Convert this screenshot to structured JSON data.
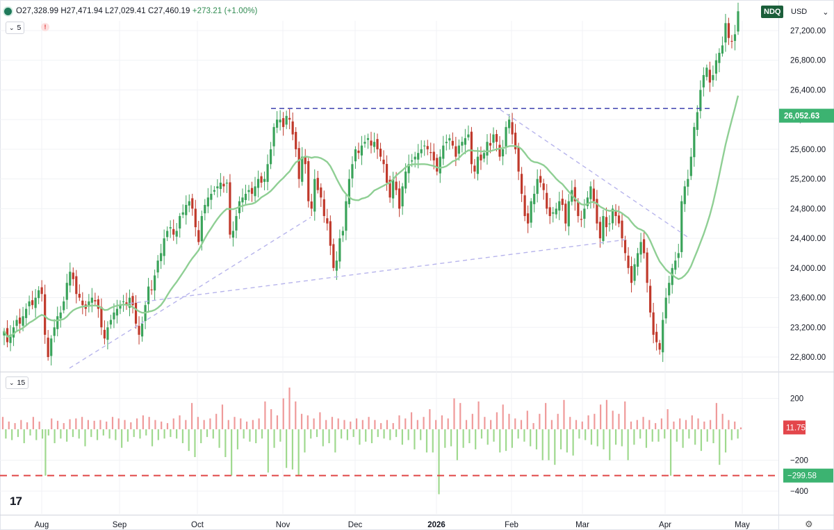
{
  "header": {
    "ohlc_text": "O27,328.99 H27,471.94 L27,029.41 C27,460.19",
    "change_text": "+273.21 (+1.00%)",
    "symbol": "NDQ",
    "currency": "USD",
    "currency_chevron": "⌄"
  },
  "studies": {
    "price_study_value": "5",
    "volume_study_value": "15",
    "warning_glyph": "!"
  },
  "logo_text": "17",
  "colors": {
    "up": "#3aa35a",
    "down": "#c0392b",
    "ma": "#8fcf94",
    "resistance": "#4c4fb5",
    "trendline": "#b7b4ec",
    "osc_up": "#ef9a9a",
    "osc_down": "#9fd98e",
    "osc_ref": "#e04646",
    "label_green": "#3cb371",
    "label_red": "#e3464b"
  },
  "chart_data": [
    {
      "type": "candlestick",
      "symbol": "NDQ",
      "currency": "USD",
      "last_ohlc": {
        "open": 27328.99,
        "high": 27471.94,
        "low": 27029.41,
        "close": 27460.19
      },
      "change": 273.21,
      "change_pct": 1.0,
      "x_tick_labels": [
        "Aug",
        "Sep",
        "Oct",
        "Nov",
        "Dec",
        "2026",
        "Feb",
        "Mar",
        "Apr",
        "May"
      ],
      "y_tick_labels": [
        "27,200.00",
        "26,800.00",
        "26,400.00",
        "26,000.00",
        "25,600.00",
        "25,200.00",
        "24,800.00",
        "24,400.00",
        "24,000.00",
        "23,600.00",
        "23,200.00",
        "22,800.00"
      ],
      "ylim": [
        22600,
        27600
      ],
      "grid": true,
      "price_label": {
        "value": 26052.63,
        "text": "26,052.63"
      },
      "closes_approx": [
        23150,
        23000,
        23100,
        23200,
        23300,
        23250,
        23350,
        23450,
        23550,
        23500,
        23600,
        23700,
        23650,
        23100,
        22800,
        23050,
        23200,
        23350,
        23400,
        23550,
        23800,
        23950,
        23850,
        23650,
        23600,
        23500,
        23450,
        23550,
        23600,
        23550,
        23450,
        23200,
        23050,
        23200,
        23300,
        23400,
        23450,
        23500,
        23550,
        23500,
        23600,
        23500,
        23250,
        23100,
        23250,
        23500,
        23750,
        23700,
        23900,
        24100,
        24200,
        24400,
        24500,
        24550,
        24450,
        24500,
        24700,
        24750,
        24850,
        24900,
        24800,
        24550,
        24350,
        24700,
        24850,
        24950,
        25000,
        25050,
        25100,
        25150,
        25100,
        25150,
        24450,
        24500,
        24700,
        24900,
        24950,
        25000,
        25050,
        25000,
        25100,
        25200,
        25150,
        25200,
        25400,
        25600,
        25900,
        26000,
        26000,
        25900,
        26050,
        26000,
        25800,
        25600,
        25200,
        25500,
        25400,
        24900,
        24800,
        25200,
        25050,
        24950,
        24700,
        24600,
        24300,
        24000,
        24100,
        24400,
        24500,
        24900,
        25200,
        25400,
        25600,
        25550,
        25650,
        25700,
        25750,
        25650,
        25700,
        25600,
        25500,
        25400,
        25150,
        24950,
        25200,
        25050,
        24800,
        25100,
        25300,
        25400,
        25450,
        25500,
        25550,
        25600,
        25650,
        25600,
        25550,
        25450,
        25300,
        25500,
        25650,
        25700,
        25750,
        25650,
        25500,
        25650,
        25700,
        25750,
        25800,
        25400,
        25300,
        25500,
        25450,
        25550,
        25700,
        25650,
        25800,
        25700,
        25500,
        25600,
        25900,
        26000,
        25800,
        25600,
        25300,
        25000,
        24700,
        24600,
        24900,
        25000,
        25200,
        25150,
        25050,
        24800,
        24700,
        24750,
        24800,
        24900,
        24850,
        24600,
        24900,
        25050,
        24900,
        24700,
        24650,
        24800,
        24950,
        25100,
        24900,
        24600,
        24400,
        24700,
        24550,
        24600,
        24800,
        24700,
        24600,
        24400,
        24200,
        24000,
        23800,
        24050,
        24200,
        24350,
        24200,
        23800,
        23400,
        23100,
        23000,
        22900,
        23300,
        23600,
        23800,
        24000,
        24100,
        24200,
        24900,
        25100,
        25200,
        25500,
        25900,
        26100,
        26400,
        26600,
        26700,
        26500,
        26600,
        26800,
        26900,
        27000,
        27300,
        27100,
        27050,
        27150,
        27460
      ]
    },
    {
      "type": "bar",
      "indicator_period": "15",
      "y_tick_labels": [
        "200",
        "−200",
        "−400"
      ],
      "ylim": [
        -430,
        260
      ],
      "grid": true,
      "current_value_label": "11.75",
      "reference_line": {
        "value": -299.58,
        "text": "−299.58"
      },
      "values_approx": [
        80,
        -60,
        50,
        -70,
        40,
        -50,
        60,
        -90,
        45,
        -40,
        80,
        -70,
        50,
        -60,
        -300,
        -40,
        70,
        -90,
        55,
        -60,
        40,
        -80,
        65,
        -50,
        70,
        -60,
        80,
        -110,
        60,
        -50,
        55,
        -70,
        60,
        -40,
        50,
        -60,
        80,
        -70,
        70,
        -120,
        60,
        -80,
        45,
        -50,
        70,
        -60,
        90,
        -40,
        80,
        -110,
        60,
        -70,
        50,
        -60,
        40,
        -50,
        70,
        -60,
        90,
        -90,
        60,
        -140,
        170,
        -180,
        80,
        -90,
        60,
        -50,
        70,
        -60,
        100,
        -120,
        160,
        -180,
        60,
        -300,
        80,
        -130,
        70,
        -60,
        50,
        -80,
        60,
        -90,
        70,
        -60,
        180,
        -280,
        130,
        -120,
        90,
        -80,
        200,
        -250,
        270,
        -260,
        180,
        -300,
        100,
        -150,
        90,
        -60,
        70,
        -50,
        110,
        -110,
        60,
        -90,
        80,
        -150,
        70,
        -60,
        60,
        -70,
        50,
        -50,
        70,
        -100,
        60,
        -80,
        80,
        -90,
        60,
        -50,
        40,
        -60,
        60,
        -70,
        40,
        -50,
        90,
        -100,
        70,
        -70,
        110,
        -130,
        60,
        -70,
        80,
        -150,
        130,
        -150,
        60,
        -420,
        90,
        -120,
        70,
        -110,
        200,
        -200,
        170,
        -120,
        60,
        -90,
        100,
        -130,
        180,
        -60,
        80,
        -100,
        60,
        -80,
        110,
        -150,
        160,
        -140,
        100,
        -120,
        70,
        -60,
        60,
        -80,
        120,
        -110,
        40,
        -130,
        100,
        -200,
        170,
        -200,
        60,
        -230,
        100,
        -130,
        190,
        -150,
        80,
        -170,
        60,
        -60,
        50,
        -70,
        90,
        -100,
        100,
        -110,
        160,
        -130,
        190,
        -200,
        120,
        -100,
        100,
        -110,
        180,
        -200,
        50,
        -100,
        60,
        -60,
        80,
        -120,
        60,
        -80,
        40,
        -80,
        70,
        -60,
        130,
        -300,
        50,
        -80,
        70,
        -120,
        60,
        -60,
        90,
        -100,
        70,
        -140,
        50,
        -80,
        60,
        -90,
        170,
        -230,
        100,
        -150,
        60,
        -70,
        50,
        -60,
        12
      ]
    }
  ]
}
